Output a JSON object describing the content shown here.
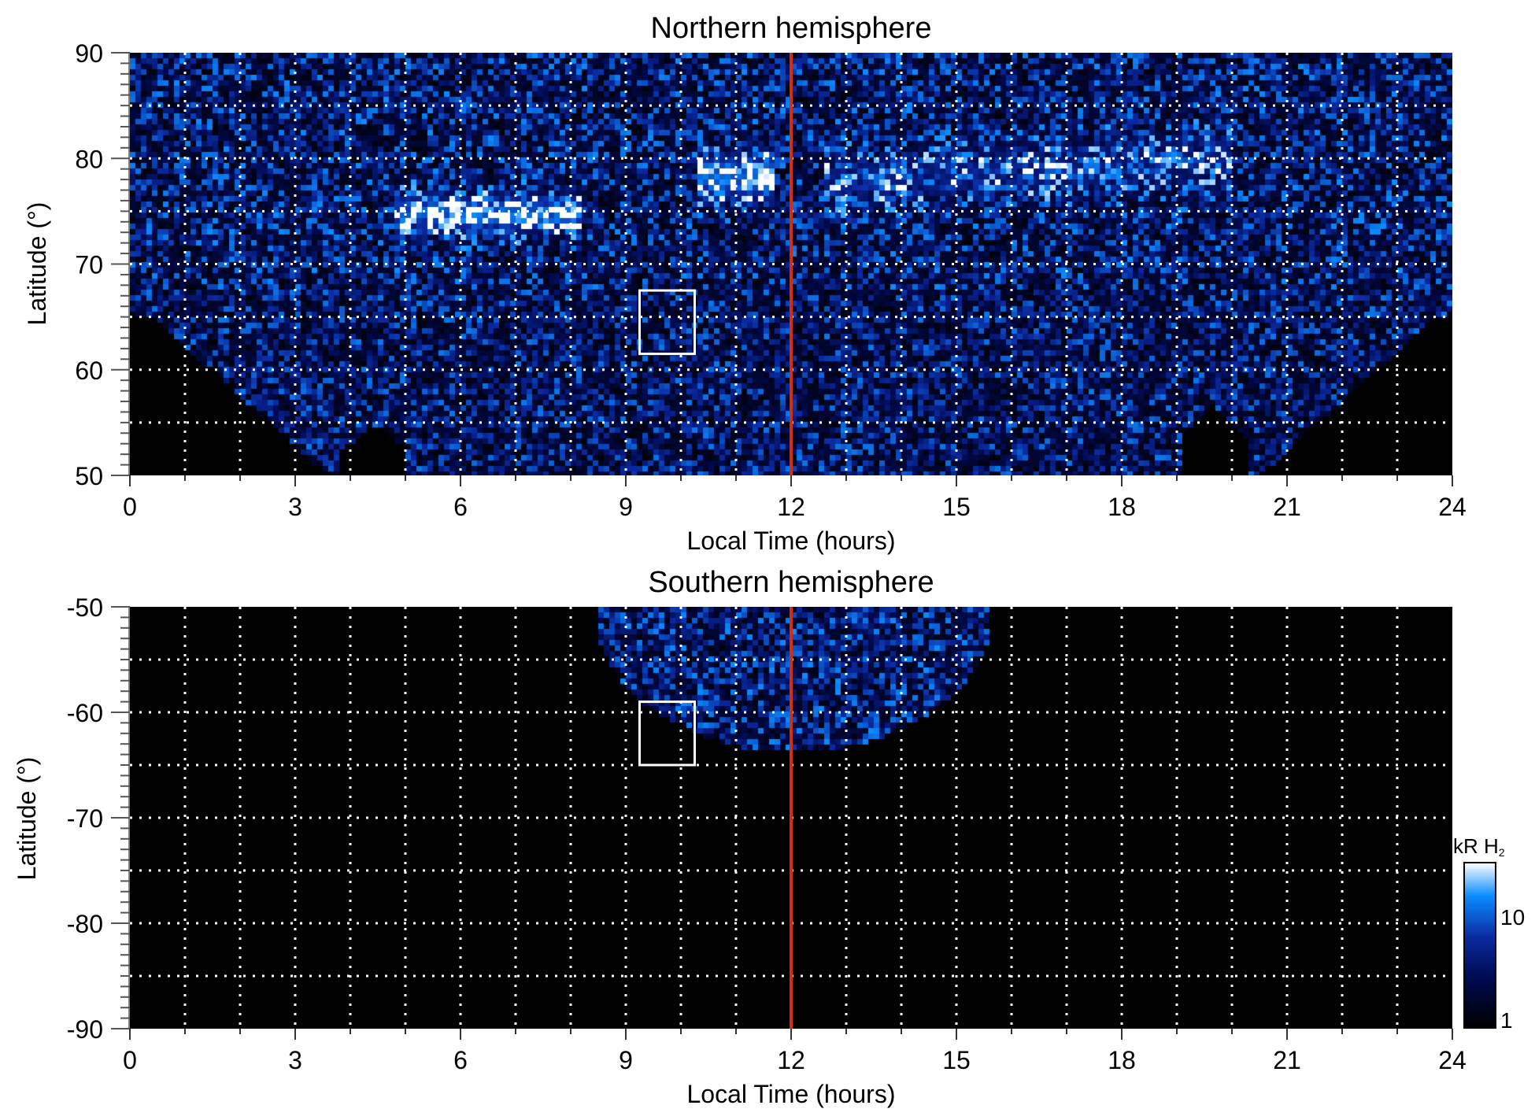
{
  "chart_data": [
    {
      "type": "heatmap",
      "title": "Northern hemisphere",
      "xlabel": "Local Time (hours)",
      "ylabel": "Latitude (°)",
      "xlim": [
        0,
        24
      ],
      "ylim": [
        50,
        90
      ],
      "xticks": [
        "0",
        "3",
        "6",
        "9",
        "12",
        "15",
        "18",
        "21",
        "24"
      ],
      "yticks": [
        "50",
        "60",
        "70",
        "80",
        "90"
      ],
      "grid": true,
      "vertical_line": {
        "x": 12,
        "color": "#d03010"
      },
      "box": {
        "x": [
          9.25,
          10.25
        ],
        "y": [
          61.5,
          67.5
        ],
        "color": "#ffffff"
      },
      "bright_features": [
        {
          "lt": [
            5,
            8
          ],
          "lat": 75
        },
        {
          "lt": [
            10.5,
            11.5
          ],
          "lat": 78.5
        },
        {
          "lt": [
            13,
            20
          ],
          "lat": 79
        }
      ]
    },
    {
      "type": "heatmap",
      "title": "Southern hemisphere",
      "xlabel": "Local Time (hours)",
      "ylabel": "Latitude (°)",
      "xlim": [
        0,
        24
      ],
      "ylim": [
        -90,
        -50
      ],
      "xticks": [
        "0",
        "3",
        "6",
        "9",
        "12",
        "15",
        "18",
        "21",
        "24"
      ],
      "yticks": [
        "-90",
        "-80",
        "-70",
        "-60",
        "-50"
      ],
      "grid": true,
      "vertical_line": {
        "x": 12,
        "color": "#d03010"
      },
      "box": {
        "x": [
          9.25,
          10.25
        ],
        "y": [
          -65,
          -59
        ],
        "color": "#ffffff"
      },
      "coverage": {
        "lt": [
          8.5,
          15.5
        ],
        "lat_min": -63.5
      }
    }
  ],
  "colorbar": {
    "label": "kR H",
    "label_sub": "2",
    "scale": "log",
    "range": [
      1,
      30
    ],
    "ticks": [
      "1",
      "10"
    ],
    "colors": [
      "#000000",
      "#000a50",
      "#0a2aa0",
      "#0a8cff",
      "#ffffff"
    ]
  }
}
